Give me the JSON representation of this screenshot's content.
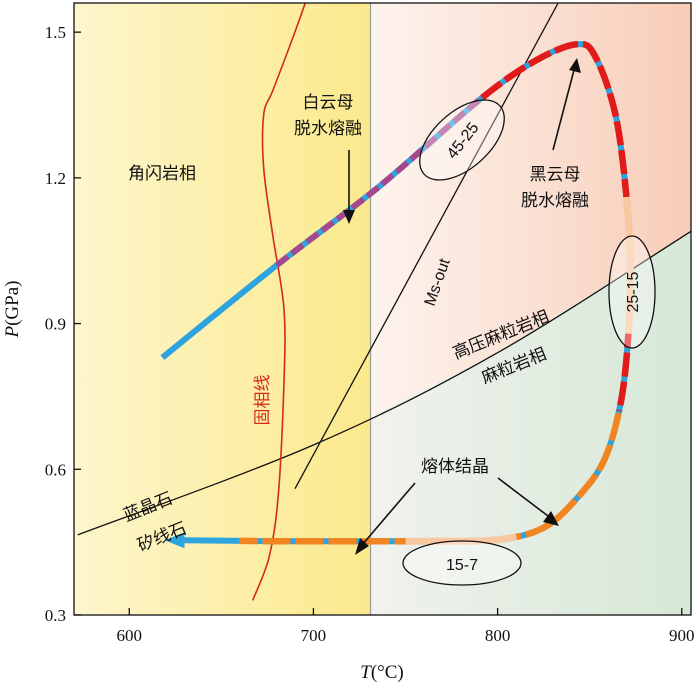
{
  "chart_data": {
    "type": "line",
    "title": "",
    "xlabel": "T(°C)",
    "ylabel": "P(GPa)",
    "xlim": [
      570,
      905
    ],
    "ylim": [
      0.3,
      1.56
    ],
    "x_ticks": [
      600,
      700,
      800,
      900
    ],
    "y_ticks": [
      0.3,
      0.6,
      0.9,
      1.2,
      1.5
    ],
    "x_tick_labels": [
      "600",
      "700",
      "800",
      "900"
    ],
    "y_tick_labels": [
      "0.3",
      "0.6",
      "0.9",
      "1.2",
      "1.5"
    ],
    "grid": false,
    "background_split_temperature": 731,
    "facies_labels": {
      "amphibolite": "角闪岩相",
      "hp_granulite": "高压麻粒岩相",
      "granulite": "麻粒岩相",
      "kyanite": "蓝晶石",
      "sillimanite": "矽线石"
    },
    "solidus_label": "固相线",
    "annotations": {
      "muscovite_melting": [
        "白云母",
        "脱水熔融"
      ],
      "biotite_melting": [
        "黑云母",
        "脱水熔融"
      ],
      "melt_crystallization": "熔体结晶",
      "ms_out": "Ms-out"
    },
    "melt_fraction_labels": [
      "45-25",
      "25-15",
      "15-7"
    ],
    "ptt_path": [
      {
        "T": 618,
        "P": 0.83
      },
      {
        "T": 680,
        "P": 1.02
      },
      {
        "T": 735,
        "P": 1.18
      },
      {
        "T": 790,
        "P": 1.36
      },
      {
        "T": 820,
        "P": 1.44
      },
      {
        "T": 843,
        "P": 1.475
      },
      {
        "T": 853,
        "P": 1.45
      },
      {
        "T": 864,
        "P": 1.33
      },
      {
        "T": 870,
        "P": 1.16
      },
      {
        "T": 872,
        "P": 1.02
      },
      {
        "T": 871,
        "P": 0.88
      },
      {
        "T": 867,
        "P": 0.74
      },
      {
        "T": 858,
        "P": 0.62
      },
      {
        "T": 843,
        "P": 0.54
      },
      {
        "T": 825,
        "P": 0.48
      },
      {
        "T": 800,
        "P": 0.455
      },
      {
        "T": 760,
        "P": 0.452
      },
      {
        "T": 680,
        "P": 0.452
      },
      {
        "T": 630,
        "P": 0.454
      }
    ],
    "solidus_line": [
      {
        "T": 697,
        "P": 1.575
      },
      {
        "T": 688,
        "P": 1.48
      },
      {
        "T": 678,
        "P": 1.38
      },
      {
        "T": 673,
        "P": 1.33
      },
      {
        "T": 673,
        "P": 1.22
      },
      {
        "T": 678,
        "P": 1.08
      },
      {
        "T": 684,
        "P": 0.93
      },
      {
        "T": 684,
        "P": 0.78
      },
      {
        "T": 681,
        "P": 0.55
      },
      {
        "T": 676,
        "P": 0.42
      },
      {
        "T": 667,
        "P": 0.33
      }
    ],
    "ms_out_line": [
      {
        "T": 690,
        "P": 0.56
      },
      {
        "T": 835,
        "P": 1.575
      }
    ],
    "ky_sil_line": [
      {
        "T": 572,
        "P": 0.465
      },
      {
        "T": 700,
        "P": 0.65
      },
      {
        "T": 800,
        "P": 0.84
      },
      {
        "T": 905,
        "P": 1.09
      }
    ],
    "colors": {
      "amphibolite_bg": "#fdf4c2",
      "hp_granulite_bg": "#fbd9c9",
      "granulite_bg": "#dbe9dc",
      "path_blue": "#2da4dd",
      "path_red": "#e11a1a",
      "path_purple": "#a3478f",
      "path_orange": "#f08522",
      "path_peach": "#f8c8a0",
      "solidus": "#d42a1e"
    }
  }
}
